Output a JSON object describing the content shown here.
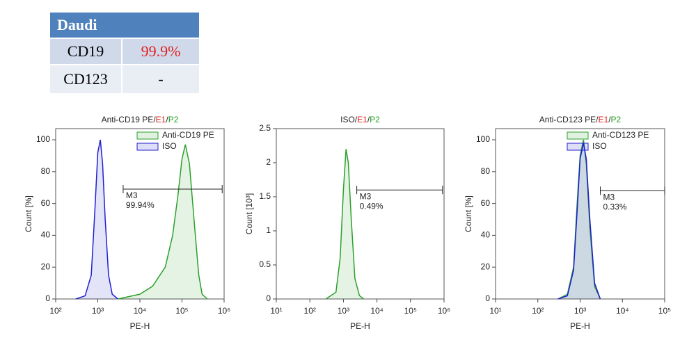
{
  "chart_data": [
    {
      "type": "histogram-overlay",
      "table": {
        "title": "Daudi",
        "rows": [
          [
            "CD19",
            "99.9%"
          ],
          [
            "CD123",
            "-"
          ]
        ]
      },
      "title": "Anti-CD19 PE",
      "title_separator": "/",
      "gate": "E1",
      "population": "P2",
      "xlabel": "PE-H",
      "ylabel": "Count [%]",
      "xscale": "log",
      "xlim": [
        100,
        1000000
      ],
      "xticks": [
        {
          "value": 100,
          "label": "10²"
        },
        {
          "value": 1000,
          "label": "10³"
        },
        {
          "value": 10000,
          "label": "10⁴"
        },
        {
          "value": 100000,
          "label": "10⁵"
        },
        {
          "value": 1000000,
          "label": "10⁶"
        }
      ],
      "ylim": [
        0,
        107
      ],
      "yticks": [
        0,
        20,
        40,
        60,
        80,
        100
      ],
      "legend": true,
      "series": [
        {
          "name": "Anti-CD19 PE",
          "color": "#2ca02c",
          "x": [
            3000,
            10000,
            20000,
            40000,
            60000,
            80000,
            100000,
            120000,
            150000,
            200000,
            250000,
            300000,
            400000
          ],
          "values": [
            0,
            3,
            8,
            20,
            40,
            65,
            88,
            97,
            85,
            45,
            15,
            3,
            0
          ]
        },
        {
          "name": "ISO",
          "color": "#2020d0",
          "x": [
            300,
            500,
            700,
            850,
            1000,
            1150,
            1300,
            1500,
            1800,
            2200,
            3000
          ],
          "values": [
            0,
            2,
            15,
            55,
            92,
            100,
            85,
            50,
            15,
            3,
            0
          ]
        }
      ],
      "marker": {
        "name": "M3",
        "label": "99.94%",
        "x": [
          4000,
          900000
        ],
        "y": 69
      }
    },
    {
      "type": "histogram-overlay",
      "title": "ISO",
      "title_separator": "/",
      "gate": "E1",
      "population": "P2",
      "xlabel": "PE-H",
      "ylabel": "Count [10³]",
      "xscale": "log",
      "xlim": [
        10,
        1000000
      ],
      "xticks": [
        {
          "value": 10,
          "label": "10¹"
        },
        {
          "value": 100,
          "label": "10²"
        },
        {
          "value": 1000,
          "label": "10³"
        },
        {
          "value": 10000,
          "label": "10⁴"
        },
        {
          "value": 100000,
          "label": "10⁵"
        },
        {
          "value": 1000000,
          "label": "10⁶"
        }
      ],
      "ylim": [
        0,
        2.5
      ],
      "yticks": [
        0,
        0.5,
        1,
        1.5,
        2,
        2.5
      ],
      "legend": false,
      "series": [
        {
          "color": "#2ca02c",
          "x": [
            300,
            600,
            800,
            1000,
            1200,
            1400,
            1700,
            2200,
            3000,
            4000
          ],
          "values": [
            0,
            0.1,
            0.6,
            1.6,
            2.2,
            2.0,
            1.2,
            0.3,
            0.05,
            0
          ]
        }
      ],
      "marker": {
        "name": "M3",
        "label": "0.49%",
        "x": [
          2500,
          900000
        ],
        "y": 1.6
      }
    },
    {
      "type": "histogram-overlay",
      "title": "Anti-CD123 PE",
      "title_separator": "/",
      "gate": "E1",
      "population": "P2",
      "xlabel": "PE-H",
      "ylabel": "Count [%]",
      "xscale": "log",
      "xlim": [
        10,
        100000
      ],
      "xticks": [
        {
          "value": 10,
          "label": "10¹"
        },
        {
          "value": 100,
          "label": "10²"
        },
        {
          "value": 1000,
          "label": "10³"
        },
        {
          "value": 10000,
          "label": "10⁴"
        },
        {
          "value": 100000,
          "label": "10⁵"
        }
      ],
      "ylim": [
        0,
        107
      ],
      "yticks": [
        0,
        20,
        40,
        60,
        80,
        100
      ],
      "legend": true,
      "series": [
        {
          "name": "Anti-CD123 PE",
          "color": "#2ca02c",
          "x": [
            300,
            500,
            700,
            850,
            1000,
            1200,
            1400,
            1700,
            2200,
            3000
          ],
          "values": [
            0,
            3,
            20,
            60,
            90,
            100,
            85,
            45,
            8,
            0
          ]
        },
        {
          "name": "ISO",
          "color": "#2020d0",
          "x": [
            300,
            500,
            700,
            850,
            1000,
            1200,
            1400,
            1700,
            2200,
            3000
          ],
          "values": [
            0,
            2,
            18,
            55,
            88,
            98,
            88,
            50,
            10,
            0
          ]
        }
      ],
      "marker": {
        "name": "M3",
        "label": "0.33%",
        "x": [
          3000,
          100000
        ],
        "y": 68
      }
    }
  ]
}
